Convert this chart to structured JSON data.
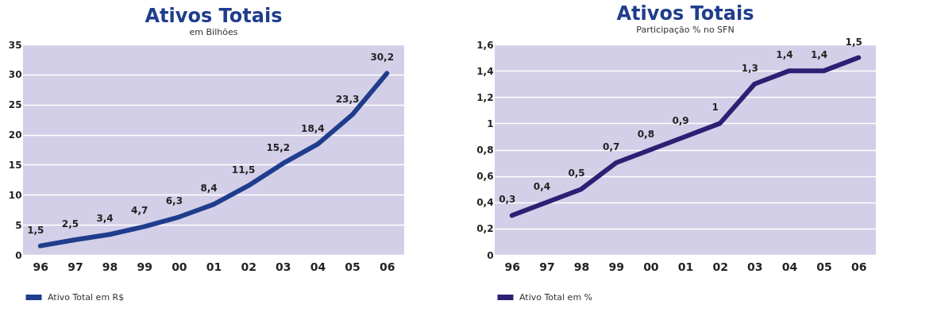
{
  "chart_data": [
    {
      "type": "line",
      "title": "Ativos Totais",
      "subtitle": "em Bilhões",
      "categories": [
        "96",
        "97",
        "98",
        "99",
        "00",
        "01",
        "02",
        "03",
        "04",
        "05",
        "06"
      ],
      "series": [
        {
          "name": "Ativo Total em R$",
          "color": "#1f3d8c",
          "values": [
            1.5,
            2.5,
            3.4,
            4.7,
            6.3,
            8.4,
            11.5,
            15.2,
            18.4,
            23.3,
            30.2
          ],
          "value_labels": [
            "1,5",
            "2,5",
            "3,4",
            "4,7",
            "6,3",
            "8,4",
            "11,5",
            "15,2",
            "18,4",
            "23,3",
            "30,2"
          ]
        }
      ],
      "ylim": [
        0,
        35
      ],
      "yticks": [
        0,
        5,
        10,
        15,
        20,
        25,
        30,
        35
      ],
      "grid": "y",
      "legend": "bottom",
      "marker": "none"
    },
    {
      "type": "line",
      "title": "Ativos Totais",
      "subtitle": "Participação % no SFN",
      "categories": [
        "96",
        "97",
        "98",
        "99",
        "00",
        "01",
        "02",
        "03",
        "04",
        "05",
        "06"
      ],
      "series": [
        {
          "name": "Ativo Total em %",
          "color": "#2e1f74",
          "values": [
            0.3,
            0.4,
            0.5,
            0.7,
            0.8,
            0.9,
            1,
            1.3,
            1.4,
            1.4,
            1.5
          ],
          "value_labels": [
            "0,3",
            "0,4",
            "0,5",
            "0,7",
            "0,8",
            "0,9",
            "1",
            "1,3",
            "1,4",
            "1,4",
            "1,5"
          ]
        }
      ],
      "ylim": [
        0,
        1.6
      ],
      "yticks": [
        0,
        {
          "value": 0.2,
          "label": "0,2"
        },
        {
          "value": 0.4,
          "label": "0,4"
        },
        {
          "value": 0.6,
          "label": "0,6"
        },
        {
          "value": 0.8,
          "label": "0,8"
        },
        1,
        {
          "value": 1.2,
          "label": "1,2"
        },
        {
          "value": 1.4,
          "label": "1,4"
        },
        {
          "value": 1.6,
          "label": "1,6"
        }
      ],
      "grid": "y",
      "legend": "bottom",
      "marker": "none"
    }
  ]
}
